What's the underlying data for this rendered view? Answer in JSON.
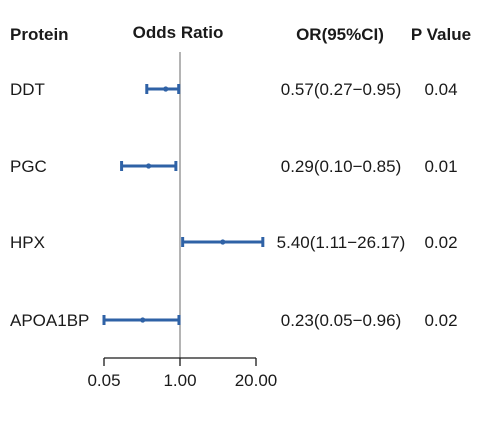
{
  "headers": {
    "protein": "Protein",
    "odds_ratio": "Odds Ratio",
    "or_ci": "OR(95%CI)",
    "p_value": "P Value"
  },
  "chart_data": {
    "type": "forest",
    "scale": "log",
    "reference_line": 1.0,
    "xlim": [
      0.05,
      20.0
    ],
    "x_ticks": [
      0.05,
      1.0,
      20.0
    ],
    "x_tick_labels": [
      "0.05",
      "1.00",
      "20.00"
    ],
    "series_color": "#2f62a6",
    "reference_color": "#8c8c8c",
    "rows": [
      {
        "protein": "DDT",
        "or": 0.57,
        "lower": 0.27,
        "upper": 0.95,
        "or_ci_text": "0.57(0.27−0.95)",
        "p_value": "0.04"
      },
      {
        "protein": "PGC",
        "or": 0.29,
        "lower": 0.1,
        "upper": 0.85,
        "or_ci_text": "0.29(0.10−0.85)",
        "p_value": "0.01"
      },
      {
        "protein": "HPX",
        "or": 5.4,
        "lower": 1.11,
        "upper": 26.17,
        "or_ci_text": "5.40(1.11−26.17)",
        "p_value": "0.02"
      },
      {
        "protein": "APOA1BP",
        "or": 0.23,
        "lower": 0.05,
        "upper": 0.96,
        "or_ci_text": "0.23(0.05−0.96)",
        "p_value": "0.02"
      }
    ]
  }
}
